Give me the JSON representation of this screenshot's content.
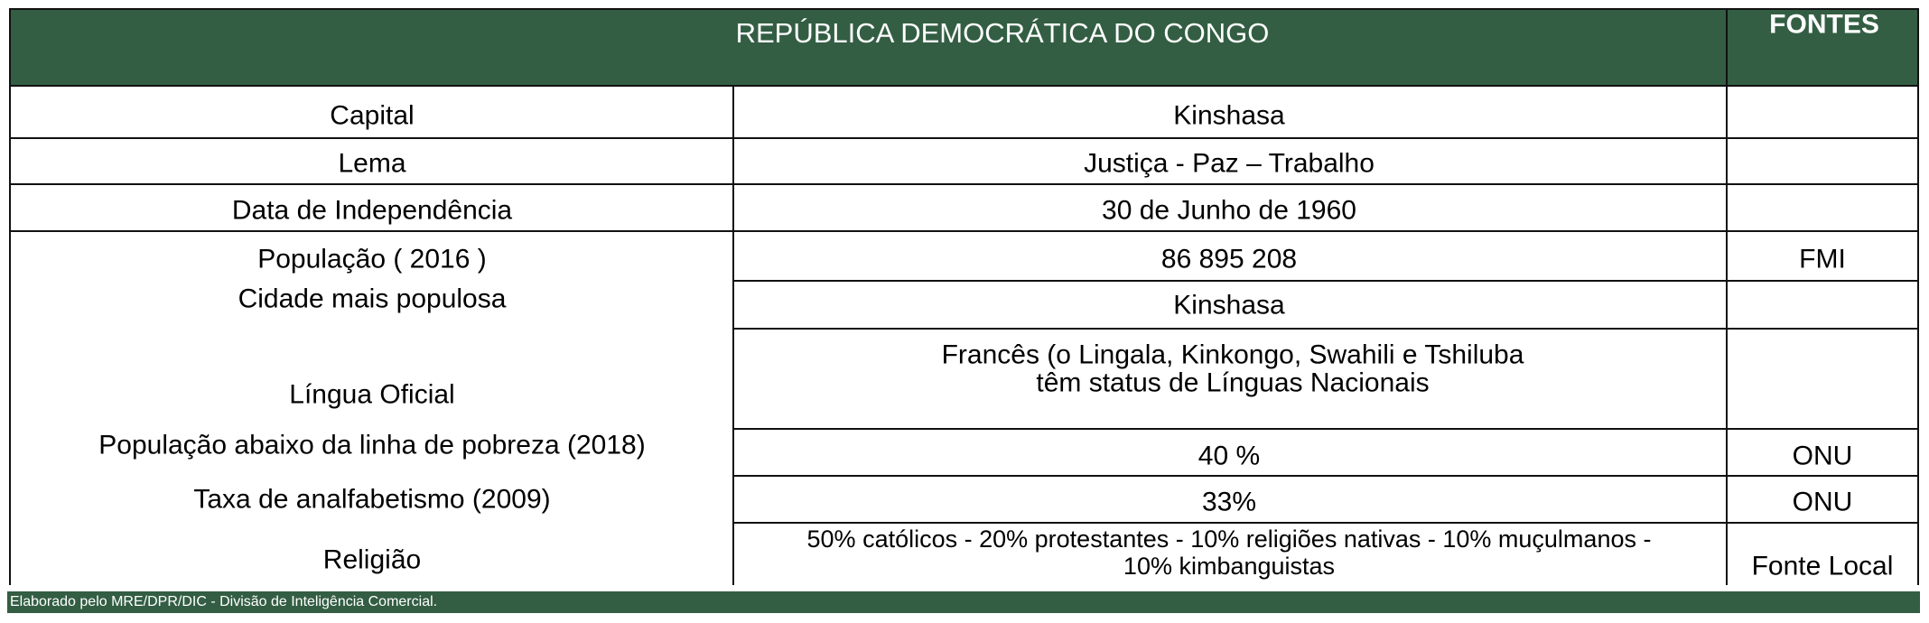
{
  "header": {
    "title": "REPÚBLICA DEMOCRÁTICA DO CONGO",
    "sources": "FONTES"
  },
  "rows": [
    {
      "label": "Capital",
      "value": "Kinshasa",
      "source": ""
    },
    {
      "label": "Lema",
      "value": "Justiça - Paz – Trabalho",
      "source": ""
    },
    {
      "label": "Data de Independência",
      "value": "30 de Junho de 1960",
      "source": ""
    },
    {
      "label": "População ( 2016 )",
      "value": "86 895 208",
      "source": "FMI"
    },
    {
      "label": "Cidade mais populosa",
      "value": "Kinshasa",
      "source": ""
    },
    {
      "label": "Língua Oficial",
      "value": "Francês (o Lingala, Kinkongo,  Swahili e Tshiluba",
      "value2": "têm status de Línguas Nacionais",
      "source": ""
    },
    {
      "label": "População abaixo da linha de pobreza (2018)",
      "value": "40 %",
      "source": "ONU"
    },
    {
      "label": "Taxa de analfabetismo (2009)",
      "value": "33%",
      "source": "ONU"
    },
    {
      "label": "Religião",
      "value": "50% católicos - 20% protestantes - 10% religiões nativas - 10% muçulmanos -",
      "value2": "10% kimbanguistas",
      "source": "Fonte Local"
    }
  ],
  "footer": "Elaborado pelo MRE/DPR/DIC - Divisão de Inteligência Comercial."
}
